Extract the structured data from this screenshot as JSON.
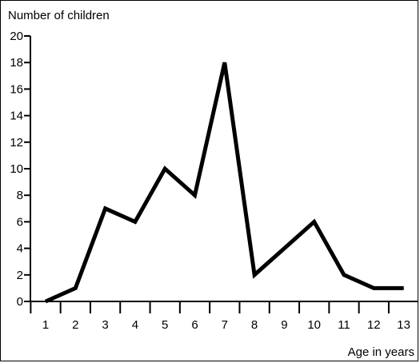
{
  "chart_data": {
    "type": "line",
    "title": "",
    "ylabel": "Number of children",
    "xlabel": "Age in years",
    "ylim": [
      0,
      20
    ],
    "yticks": [
      0,
      2,
      4,
      6,
      8,
      10,
      12,
      14,
      16,
      18,
      20
    ],
    "categories": [
      "1",
      "2",
      "3",
      "4",
      "5",
      "6",
      "7",
      "8",
      "9",
      "10",
      "11",
      "12",
      "13"
    ],
    "series": [
      {
        "values": [
          0,
          1,
          7,
          6,
          10,
          8,
          18,
          2,
          4,
          6,
          2,
          1,
          1
        ],
        "color": "#000000"
      }
    ],
    "grid": false,
    "legend": "none"
  }
}
